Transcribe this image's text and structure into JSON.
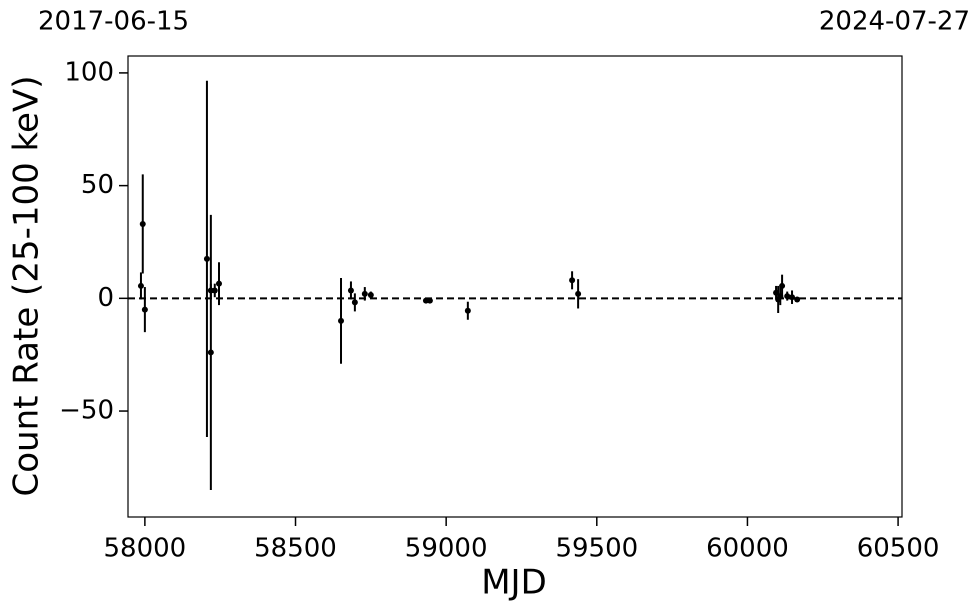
{
  "chart_data": {
    "type": "scatter",
    "corner_labels": [
      "2017-06-15",
      "2024-07-27"
    ],
    "xlabel": "MJD",
    "ylabel": "Count Rate (25-100 keV)",
    "x": [
      57987,
      57993,
      58000,
      58206,
      58219,
      58219,
      58232,
      58246,
      58651,
      58684,
      58697,
      58730,
      58750,
      58933,
      58946,
      59072,
      59418,
      59438,
      60095,
      60102,
      60109,
      60115,
      60132,
      60148,
      60165
    ],
    "values": [
      5.5,
      33,
      -5,
      17.5,
      -24,
      3.5,
      3.5,
      6.5,
      -10,
      3.5,
      -1.8,
      2,
      1.5,
      -1,
      -1,
      -5.5,
      8,
      2,
      2.5,
      -0.5,
      1,
      5.5,
      1,
      0.5,
      -0.5
    ],
    "errors": [
      6,
      22,
      10,
      79,
      61,
      3,
      3,
      9.5,
      19,
      4,
      4,
      3,
      1.5,
      1,
      1,
      4,
      4,
      6.5,
      3,
      6,
      4,
      5,
      2,
      3,
      1
    ],
    "color": "#000000",
    "hline": 0,
    "xlim": [
      57944,
      60513
    ],
    "ylim": [
      -97,
      107.5
    ],
    "xticks": [
      58000,
      58500,
      59000,
      59500,
      60000,
      60500
    ],
    "yticks": [
      {
        "value": -50,
        "label": "−50"
      },
      0,
      50,
      100
    ],
    "grid": false
  }
}
